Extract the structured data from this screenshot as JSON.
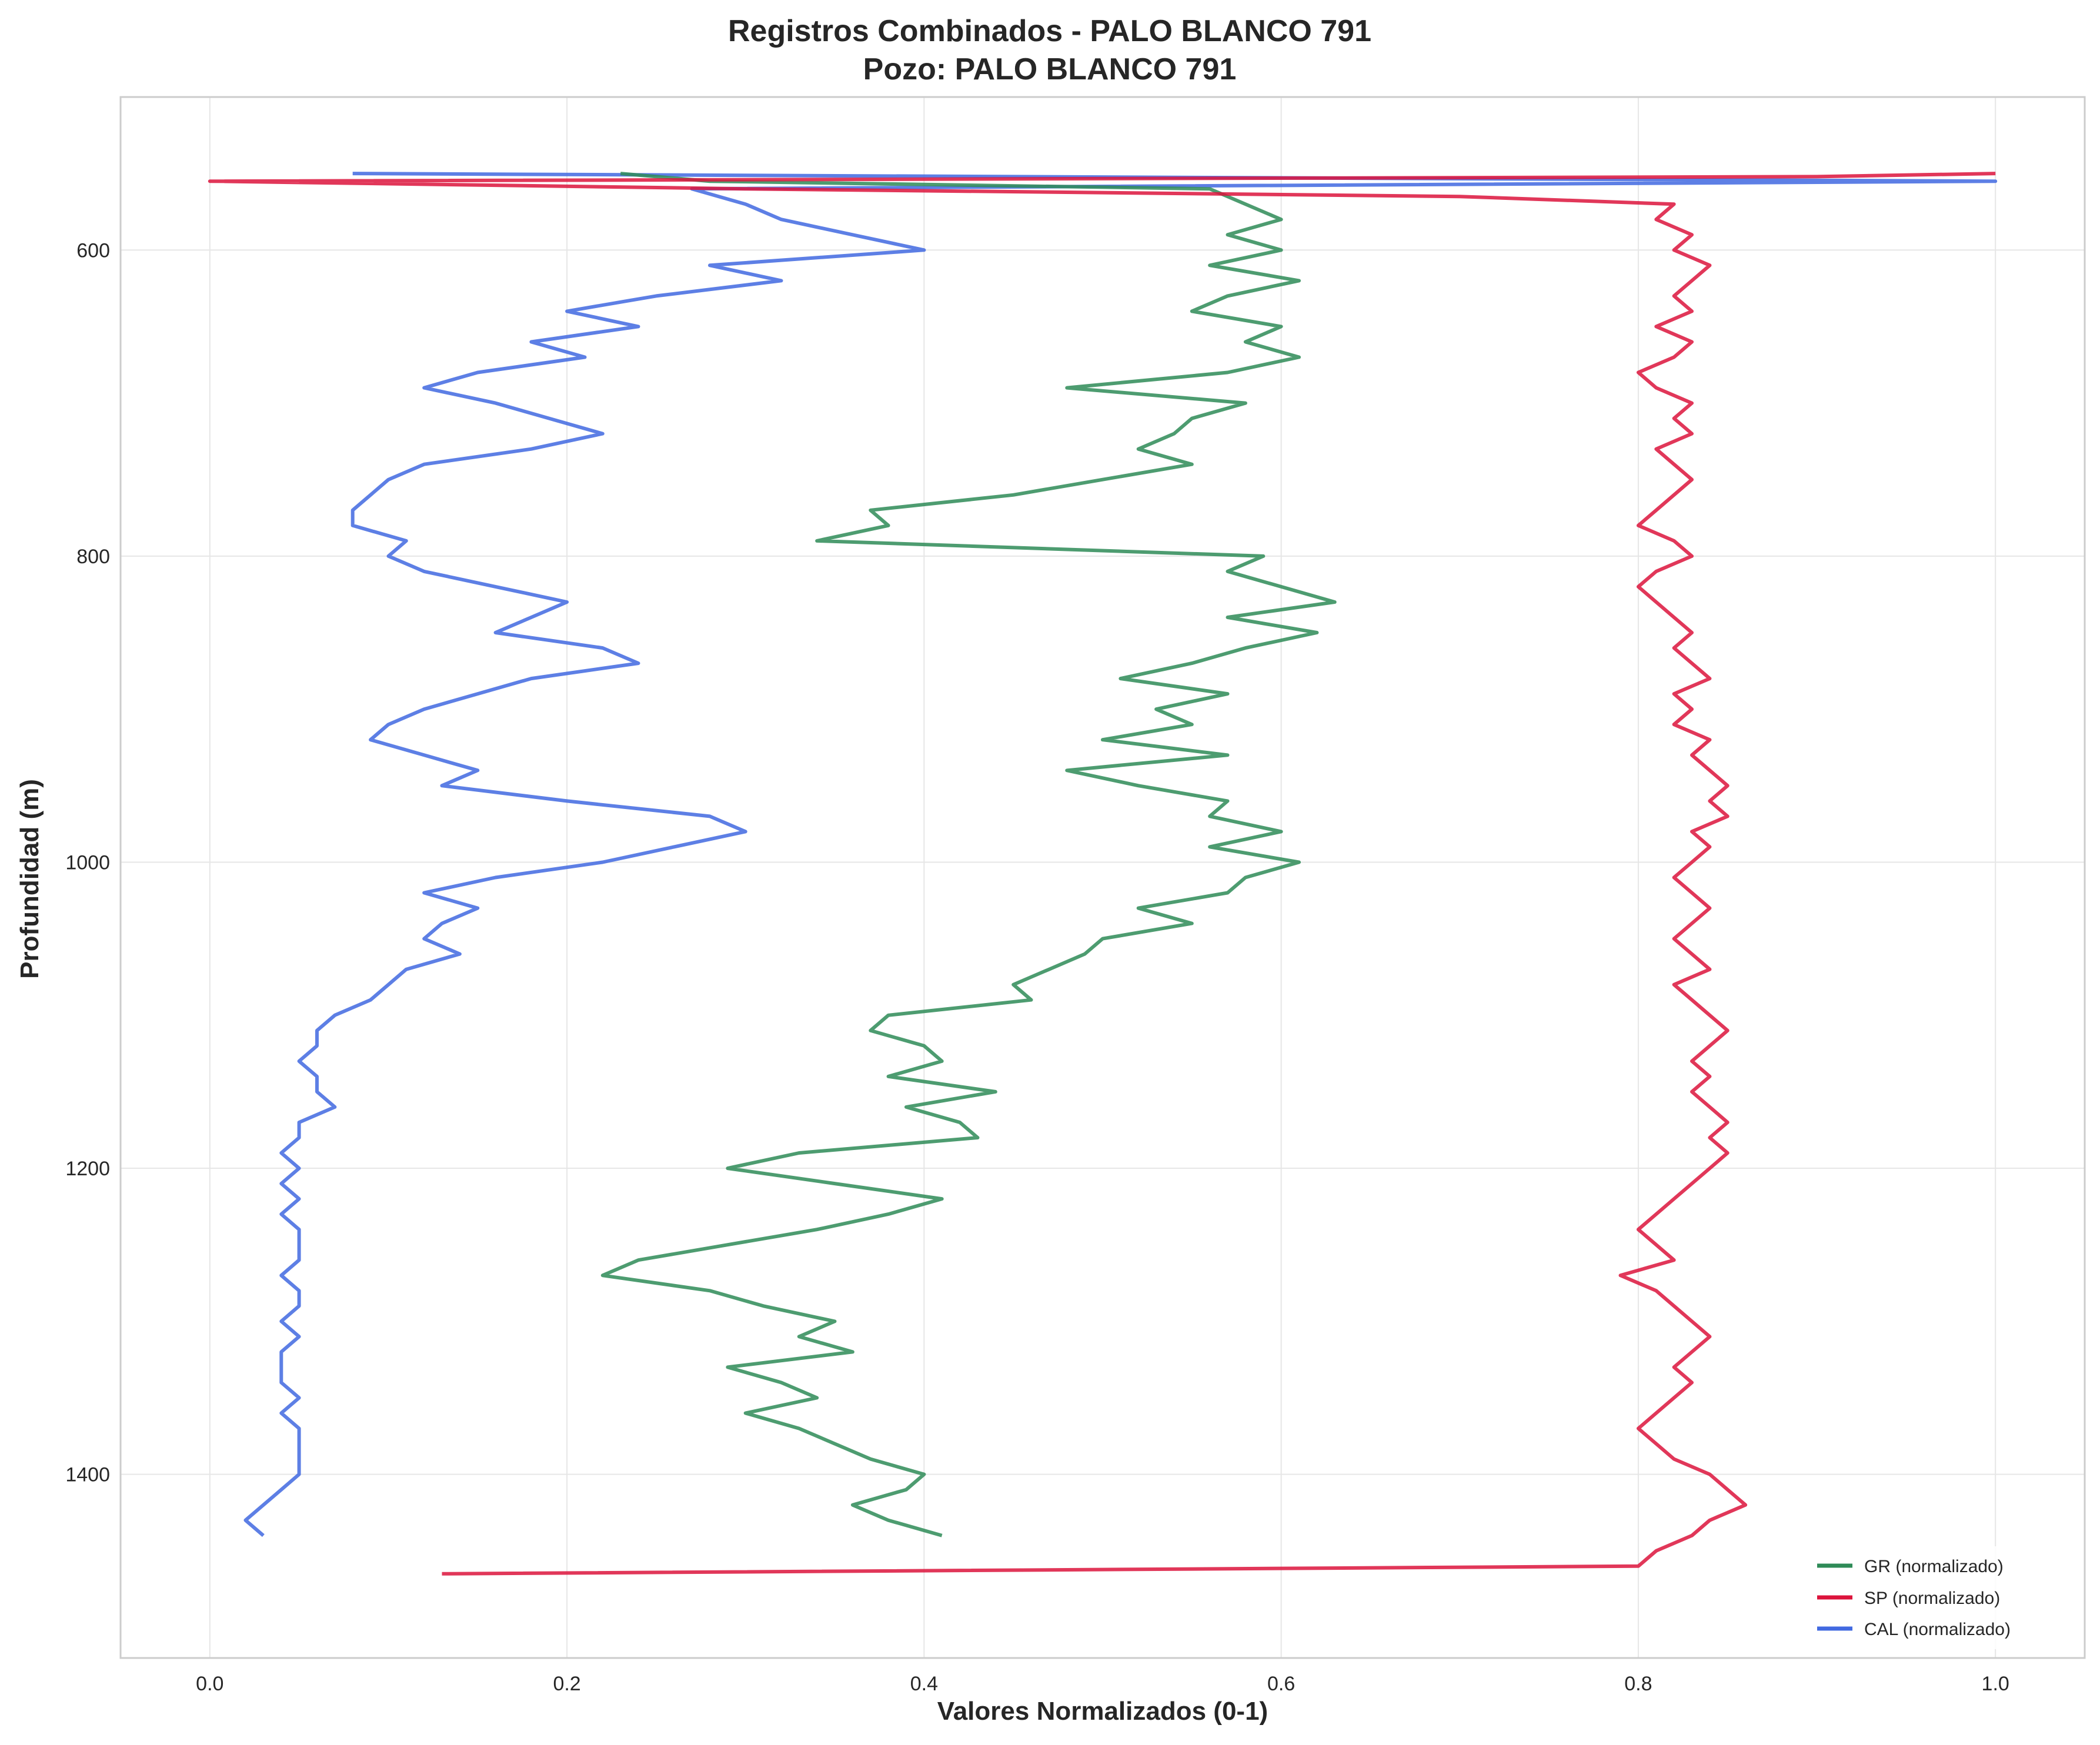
{
  "colors": {
    "GR": "#2e8b57",
    "SP": "#dc143c",
    "CAL": "#4169e1"
  },
  "chart_data": {
    "type": "line",
    "title": "Registros Combinados - PALO BLANCO 791",
    "subtitle": "Pozo: PALO BLANCO 791",
    "xlabel": "Valores Normalizados (0-1)",
    "ylabel": "Profundidad (m)",
    "xlim": [
      -0.05,
      1.05
    ],
    "ylim": [
      1520,
      500
    ],
    "y_inverted": true,
    "grid": true,
    "legend_position": "bottom-right",
    "x_ticks": [
      "0.0",
      "0.2",
      "0.4",
      "0.6",
      "0.8",
      "1.0"
    ],
    "y_ticks": [
      "600",
      "800",
      "1000",
      "1200",
      "1400"
    ],
    "series": [
      {
        "name": "GR (normalizado)",
        "color_key": "GR",
        "depth": [
          550,
          555,
          560,
          570,
          580,
          590,
          600,
          610,
          620,
          630,
          640,
          650,
          660,
          670,
          680,
          690,
          700,
          710,
          720,
          730,
          740,
          750,
          760,
          770,
          780,
          790,
          800,
          810,
          820,
          830,
          840,
          850,
          860,
          870,
          880,
          890,
          900,
          910,
          920,
          930,
          940,
          950,
          960,
          970,
          980,
          990,
          1000,
          1010,
          1020,
          1030,
          1040,
          1050,
          1060,
          1070,
          1080,
          1090,
          1100,
          1110,
          1120,
          1130,
          1140,
          1150,
          1160,
          1170,
          1180,
          1190,
          1200,
          1210,
          1220,
          1230,
          1240,
          1250,
          1260,
          1270,
          1280,
          1290,
          1300,
          1310,
          1320,
          1330,
          1340,
          1350,
          1360,
          1370,
          1380,
          1390,
          1400,
          1410,
          1420,
          1430,
          1440
        ],
        "value": [
          0.23,
          0.28,
          0.56,
          0.58,
          0.6,
          0.57,
          0.6,
          0.56,
          0.61,
          0.57,
          0.55,
          0.6,
          0.58,
          0.61,
          0.57,
          0.48,
          0.58,
          0.55,
          0.54,
          0.52,
          0.55,
          0.5,
          0.45,
          0.37,
          0.38,
          0.34,
          0.59,
          0.57,
          0.6,
          0.63,
          0.57,
          0.62,
          0.58,
          0.55,
          0.51,
          0.57,
          0.53,
          0.55,
          0.5,
          0.57,
          0.48,
          0.52,
          0.57,
          0.56,
          0.6,
          0.56,
          0.61,
          0.58,
          0.57,
          0.52,
          0.55,
          0.5,
          0.49,
          0.47,
          0.45,
          0.46,
          0.38,
          0.37,
          0.4,
          0.41,
          0.38,
          0.44,
          0.39,
          0.42,
          0.43,
          0.33,
          0.29,
          0.35,
          0.41,
          0.38,
          0.34,
          0.29,
          0.24,
          0.22,
          0.28,
          0.31,
          0.35,
          0.33,
          0.36,
          0.29,
          0.32,
          0.34,
          0.3,
          0.33,
          0.35,
          0.37,
          0.4,
          0.39,
          0.36,
          0.38,
          0.41
        ]
      },
      {
        "name": "SP (normalizado)",
        "color_key": "SP",
        "depth": [
          550,
          552,
          555,
          560,
          565,
          570,
          580,
          590,
          600,
          610,
          620,
          630,
          640,
          650,
          660,
          670,
          680,
          690,
          700,
          710,
          720,
          730,
          740,
          750,
          760,
          770,
          780,
          790,
          800,
          810,
          820,
          830,
          840,
          850,
          860,
          870,
          880,
          890,
          900,
          910,
          920,
          930,
          940,
          950,
          960,
          970,
          980,
          990,
          1000,
          1010,
          1020,
          1030,
          1040,
          1050,
          1060,
          1070,
          1080,
          1090,
          1100,
          1110,
          1120,
          1130,
          1140,
          1150,
          1160,
          1170,
          1180,
          1190,
          1200,
          1210,
          1220,
          1230,
          1240,
          1250,
          1260,
          1270,
          1280,
          1290,
          1300,
          1310,
          1320,
          1330,
          1340,
          1350,
          1360,
          1370,
          1380,
          1390,
          1400,
          1410,
          1420,
          1430,
          1440,
          1450,
          1460,
          1465
        ],
        "value": [
          1.0,
          0.9,
          0.0,
          0.3,
          0.7,
          0.82,
          0.81,
          0.83,
          0.82,
          0.84,
          0.83,
          0.82,
          0.83,
          0.81,
          0.83,
          0.82,
          0.8,
          0.81,
          0.83,
          0.82,
          0.83,
          0.81,
          0.82,
          0.83,
          0.82,
          0.81,
          0.8,
          0.82,
          0.83,
          0.81,
          0.8,
          0.81,
          0.82,
          0.83,
          0.82,
          0.83,
          0.84,
          0.82,
          0.83,
          0.82,
          0.84,
          0.83,
          0.84,
          0.85,
          0.84,
          0.85,
          0.83,
          0.84,
          0.83,
          0.82,
          0.83,
          0.84,
          0.83,
          0.82,
          0.83,
          0.84,
          0.82,
          0.83,
          0.84,
          0.85,
          0.84,
          0.83,
          0.84,
          0.83,
          0.84,
          0.85,
          0.84,
          0.85,
          0.84,
          0.83,
          0.82,
          0.81,
          0.8,
          0.81,
          0.82,
          0.79,
          0.81,
          0.82,
          0.83,
          0.84,
          0.83,
          0.82,
          0.83,
          0.82,
          0.81,
          0.8,
          0.81,
          0.82,
          0.84,
          0.85,
          0.86,
          0.84,
          0.83,
          0.81,
          0.8,
          0.13
        ]
      },
      {
        "name": "CAL (normalizado)",
        "color_key": "CAL",
        "depth": [
          550,
          555,
          560,
          570,
          580,
          590,
          600,
          610,
          620,
          630,
          640,
          650,
          660,
          670,
          680,
          690,
          700,
          710,
          720,
          730,
          740,
          750,
          760,
          770,
          780,
          790,
          800,
          810,
          820,
          830,
          840,
          850,
          860,
          870,
          880,
          890,
          900,
          910,
          920,
          930,
          940,
          950,
          960,
          970,
          980,
          990,
          1000,
          1010,
          1020,
          1030,
          1040,
          1050,
          1060,
          1070,
          1080,
          1090,
          1100,
          1110,
          1120,
          1130,
          1140,
          1150,
          1160,
          1170,
          1180,
          1190,
          1200,
          1210,
          1220,
          1230,
          1240,
          1250,
          1260,
          1270,
          1280,
          1290,
          1300,
          1310,
          1320,
          1330,
          1340,
          1350,
          1360,
          1370,
          1380,
          1390,
          1400,
          1410,
          1420,
          1430,
          1440
        ],
        "value": [
          0.08,
          1.0,
          0.27,
          0.3,
          0.32,
          0.36,
          0.4,
          0.28,
          0.32,
          0.25,
          0.2,
          0.24,
          0.18,
          0.21,
          0.15,
          0.12,
          0.16,
          0.19,
          0.22,
          0.18,
          0.12,
          0.1,
          0.09,
          0.08,
          0.08,
          0.11,
          0.1,
          0.12,
          0.16,
          0.2,
          0.18,
          0.16,
          0.22,
          0.24,
          0.18,
          0.15,
          0.12,
          0.1,
          0.09,
          0.12,
          0.15,
          0.13,
          0.2,
          0.28,
          0.3,
          0.26,
          0.22,
          0.16,
          0.12,
          0.15,
          0.13,
          0.12,
          0.14,
          0.11,
          0.1,
          0.09,
          0.07,
          0.06,
          0.06,
          0.05,
          0.06,
          0.06,
          0.07,
          0.05,
          0.05,
          0.04,
          0.05,
          0.04,
          0.05,
          0.04,
          0.05,
          0.05,
          0.05,
          0.04,
          0.05,
          0.05,
          0.04,
          0.05,
          0.04,
          0.04,
          0.04,
          0.05,
          0.04,
          0.05,
          0.05,
          0.05,
          0.05,
          0.04,
          0.03,
          0.02,
          0.03
        ]
      }
    ]
  }
}
